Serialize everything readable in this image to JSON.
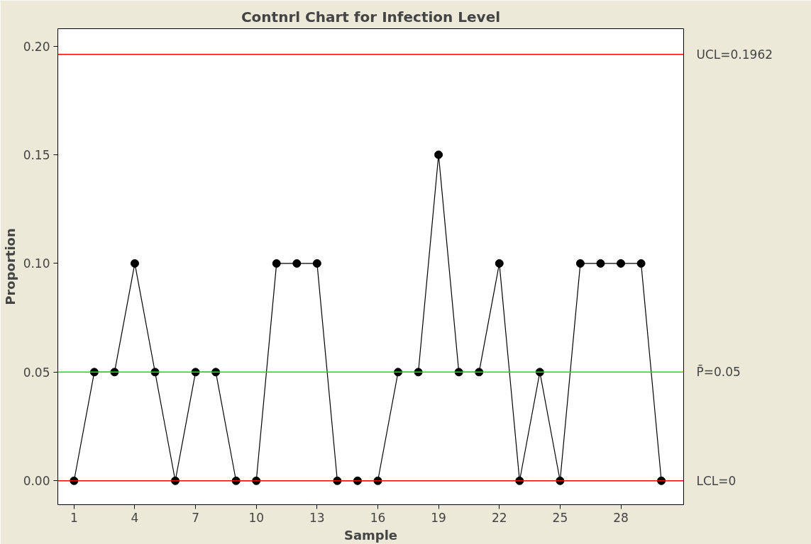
{
  "chart_data": {
    "type": "line",
    "title": "Contnrl Chart for Infection Level",
    "xlabel": "Sample",
    "ylabel": "Proportion",
    "x": [
      1,
      2,
      3,
      4,
      5,
      6,
      7,
      8,
      9,
      10,
      11,
      12,
      13,
      14,
      15,
      16,
      17,
      18,
      19,
      20,
      21,
      22,
      23,
      24,
      25,
      26,
      27,
      28,
      29,
      30
    ],
    "series": [
      {
        "color": "#000000",
        "values": [
          0,
          0.05,
          0.05,
          0.1,
          0.05,
          0,
          0.05,
          0.05,
          0,
          0,
          0.1,
          0.1,
          0.1,
          0,
          0,
          0,
          0.05,
          0.05,
          0.15,
          0.05,
          0.05,
          0.1,
          0,
          0.05,
          0,
          0.1,
          0.1,
          0.1,
          0.1,
          0
        ]
      }
    ],
    "xlim": [
      0.2,
      31.1
    ],
    "xticks": [
      1,
      4,
      7,
      10,
      13,
      16,
      19,
      22,
      25,
      28
    ],
    "ylim": [
      -0.011,
      0.208
    ],
    "yticks": [
      {
        "value": 0,
        "label": "0.00"
      },
      {
        "value": 0.05,
        "label": "0.05"
      },
      {
        "value": 0.1,
        "label": "0.10"
      },
      {
        "value": 0.15,
        "label": "0.15"
      },
      {
        "value": 0.2,
        "label": "0.20"
      }
    ],
    "ref_lines": [
      {
        "axis": "y",
        "value": 0.1962,
        "label": "UCL=0.1962",
        "color": "#ff0000"
      },
      {
        "axis": "y",
        "value": 0.05,
        "label": "P̄=0.05",
        "color": "#00ee00"
      },
      {
        "axis": "y",
        "value": 0,
        "label": "LCL=0",
        "color": "#ff0000"
      }
    ],
    "marker": "circle",
    "line_style": "solid",
    "grid": false
  }
}
